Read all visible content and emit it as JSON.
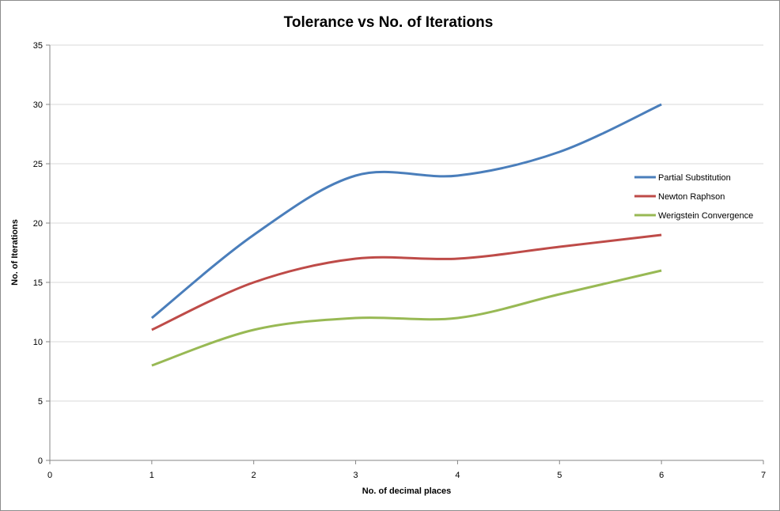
{
  "chart_data": {
    "type": "line",
    "title": "Tolerance vs No. of Iterations",
    "xlabel": "No. of decimal places",
    "ylabel": "No. of Iterations",
    "xlim": [
      0,
      7
    ],
    "ylim": [
      0,
      35
    ],
    "x_ticks": [
      "0",
      "1",
      "2",
      "3",
      "4",
      "5",
      "6",
      "7"
    ],
    "y_ticks": [
      "0",
      "5",
      "10",
      "15",
      "20",
      "25",
      "30",
      "35"
    ],
    "grid": "horizontal",
    "smoothed": true,
    "legend_position": "right",
    "x": [
      1,
      2,
      3,
      4,
      5,
      6
    ],
    "series": [
      {
        "name": "Partial Substitution",
        "color": "#4a7ebb",
        "values": [
          12,
          19,
          24,
          24,
          26,
          30
        ]
      },
      {
        "name": "Newton Raphson",
        "color": "#be4b48",
        "values": [
          11,
          15,
          17,
          17,
          18,
          19
        ]
      },
      {
        "name": "Werigstein Convergence",
        "color": "#98b954",
        "values": [
          8,
          11,
          12,
          12,
          14,
          16
        ]
      }
    ]
  }
}
